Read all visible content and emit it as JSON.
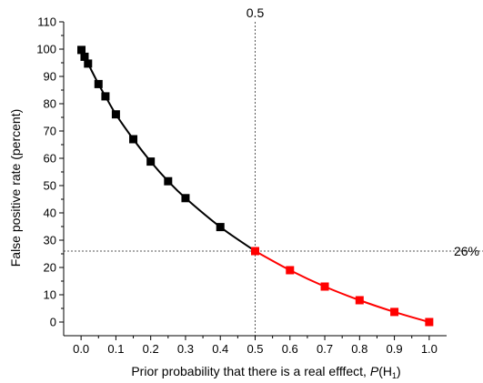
{
  "chart_data": {
    "type": "scatter",
    "xlabel_prefix": "Prior probability that there is a real efffect, ",
    "xlabel_var": "P",
    "xlabel_paren": "(H",
    "xlabel_sub": "1",
    "xlabel_close": ")",
    "ylabel": "False positive rate (percent)",
    "xlim": [
      -0.05,
      1.05
    ],
    "ylim": [
      -5,
      110
    ],
    "x_ticks": [
      0.0,
      0.1,
      0.2,
      0.3,
      0.4,
      0.5,
      0.6,
      0.7,
      0.8,
      0.9,
      1.0
    ],
    "x_tick_labels": [
      "0.0",
      "0.1",
      "0.2",
      "0.3",
      "0.4",
      "0.5",
      "0.6",
      "0.7",
      "0.8",
      "0.9",
      "1.0"
    ],
    "y_ticks": [
      0,
      10,
      20,
      30,
      40,
      50,
      60,
      70,
      80,
      90,
      100,
      110
    ],
    "y_tick_labels": [
      "0",
      "10",
      "20",
      "30",
      "40",
      "50",
      "60",
      "70",
      "80",
      "90",
      "100",
      "110"
    ],
    "series": [
      {
        "color": "#000000",
        "x": [
          0.001,
          0.01,
          0.02,
          0.05,
          0.07,
          0.1,
          0.15,
          0.2,
          0.25,
          0.3,
          0.4,
          0.5
        ],
        "y": [
          99.7,
          97.2,
          94.7,
          87.2,
          82.7,
          76.1,
          67.0,
          58.8,
          51.6,
          45.4,
          34.8,
          26.0
        ]
      },
      {
        "color": "#ff0000",
        "x": [
          0.5,
          0.6,
          0.7,
          0.8,
          0.9,
          1.0
        ],
        "y": [
          26.0,
          19.0,
          13.0,
          8.0,
          3.7,
          0.0
        ]
      }
    ],
    "reference_lines": {
      "vertical_x": 0.5,
      "vertical_label": "0.5",
      "horizontal_y": 26,
      "horizontal_label": "26%"
    }
  }
}
